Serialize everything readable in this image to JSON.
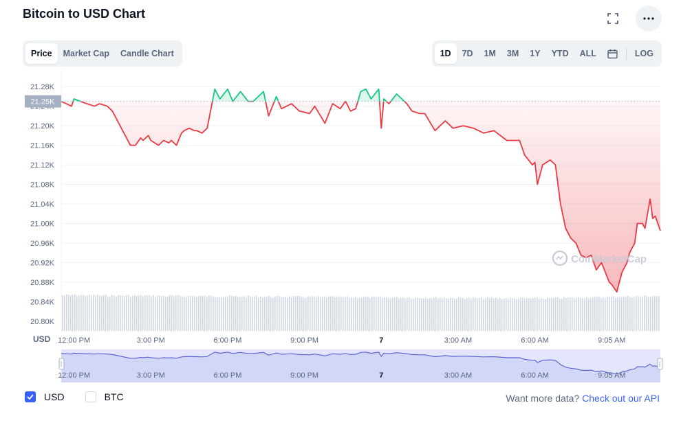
{
  "header": {
    "title": "Bitcoin to USD Chart"
  },
  "icons": {
    "fullscreen": "fullscreen-icon",
    "more": "more-icon",
    "calendar": "calendar-icon",
    "usd_check": "check-icon"
  },
  "tabs": {
    "price": "Price",
    "market_cap": "Market Cap",
    "candle_chart": "Candle Chart",
    "active": "Price"
  },
  "ranges": {
    "d1": "1D",
    "d7": "7D",
    "m1": "1M",
    "m3": "3M",
    "y1": "1Y",
    "ytd": "YTD",
    "all": "ALL",
    "log": "LOG",
    "active": "1D"
  },
  "footer": {
    "usd_label": "USD",
    "btc_label": "BTC",
    "usd_checked": true,
    "btc_checked": false,
    "more_data_text": "Want more data?",
    "api_link": "Check out our API"
  },
  "watermark": "CoinMarketCap",
  "colors": {
    "up": "#16c784",
    "down": "#ea3943",
    "brand": "#3861fb",
    "volume": "#cfd6e4",
    "navigator_fill": "#e3e6fb",
    "navigator_line": "#5b63d3"
  },
  "chart_data": {
    "type": "line",
    "title": "Bitcoin to USD Chart",
    "currency_label": "USD",
    "baseline": 21.25,
    "baseline_label": "21.25K",
    "ylim": [
      20.78,
      21.3
    ],
    "yticks": [
      {
        "v": 21.28,
        "label": "21.28K"
      },
      {
        "v": 21.24,
        "label": "21.24K"
      },
      {
        "v": 21.2,
        "label": "21.20K"
      },
      {
        "v": 21.16,
        "label": "21.16K"
      },
      {
        "v": 21.12,
        "label": "21.12K"
      },
      {
        "v": 21.08,
        "label": "21.08K"
      },
      {
        "v": 21.04,
        "label": "21.04K"
      },
      {
        "v": 21.0,
        "label": "21.00K"
      },
      {
        "v": 20.96,
        "label": "20.96K"
      },
      {
        "v": 20.92,
        "label": "20.92K"
      },
      {
        "v": 20.88,
        "label": "20.88K"
      },
      {
        "v": 20.84,
        "label": "20.84K"
      },
      {
        "v": 20.8,
        "label": "20.80K"
      }
    ],
    "xlim": [
      11.5,
      34.9
    ],
    "xticks": [
      {
        "t": 12,
        "label": "12:00 PM"
      },
      {
        "t": 15,
        "label": "3:00 PM"
      },
      {
        "t": 18,
        "label": "6:00 PM"
      },
      {
        "t": 21,
        "label": "9:00 PM"
      },
      {
        "t": 24,
        "label": "7"
      },
      {
        "t": 27,
        "label": "3:00 AM"
      },
      {
        "t": 30,
        "label": "6:00 AM"
      },
      {
        "t": 33,
        "label": "9:05 AM"
      }
    ],
    "unit": "thousand USD",
    "series": [
      {
        "x": [
          11.5,
          11.9,
          12.0,
          12.5,
          12.8,
          13.0,
          13.3,
          13.5,
          13.8,
          13.9,
          14.2,
          14.4,
          14.6,
          14.7,
          14.9,
          15.0,
          15.3,
          15.5,
          15.7,
          15.8,
          16.0,
          16.2,
          16.3,
          16.5,
          16.7,
          16.8,
          17.0,
          17.2,
          17.5,
          17.7,
          18.0,
          18.2,
          18.5,
          18.8,
          19.0,
          19.4,
          19.6,
          19.9,
          20.1,
          20.5,
          20.8,
          21.2,
          21.4,
          21.8,
          22.1,
          22.4,
          22.6,
          22.8,
          23.0,
          23.2,
          23.4,
          23.6,
          23.9,
          24.0,
          24.1,
          24.3,
          24.6,
          24.8,
          25.0,
          25.2,
          25.5,
          25.7,
          26.1,
          26.5,
          26.8,
          27.2,
          27.6,
          28.0,
          28.4,
          28.9,
          29.4,
          29.6,
          29.9,
          30.0,
          30.1,
          30.3,
          30.6,
          30.8,
          31.0,
          31.2,
          31.4,
          31.6,
          31.8,
          32.0,
          32.2,
          32.4,
          32.6,
          32.9,
          33.0,
          33.2,
          33.4,
          33.5,
          33.6,
          33.7,
          33.9,
          34.0,
          34.2,
          34.3,
          34.5,
          34.6,
          34.7,
          34.9
        ],
        "y": [
          21.25,
          21.24,
          21.255,
          21.245,
          21.24,
          21.245,
          21.24,
          21.23,
          21.2,
          21.19,
          21.16,
          21.16,
          21.175,
          21.17,
          21.18,
          21.17,
          21.16,
          21.17,
          21.165,
          21.17,
          21.16,
          21.185,
          21.19,
          21.195,
          21.19,
          21.19,
          21.185,
          21.195,
          21.275,
          21.255,
          21.275,
          21.25,
          21.27,
          21.25,
          21.25,
          21.27,
          21.22,
          21.26,
          21.235,
          21.245,
          21.23,
          21.225,
          21.24,
          21.205,
          21.245,
          21.235,
          21.25,
          21.23,
          21.235,
          21.27,
          21.275,
          21.255,
          21.275,
          21.195,
          21.255,
          21.245,
          21.265,
          21.255,
          21.245,
          21.23,
          21.225,
          21.225,
          21.19,
          21.21,
          21.195,
          21.2,
          21.195,
          21.185,
          21.19,
          21.17,
          21.17,
          21.14,
          21.12,
          21.125,
          21.08,
          21.12,
          21.13,
          21.12,
          21.04,
          20.99,
          20.97,
          20.96,
          20.935,
          20.93,
          20.935,
          20.905,
          20.92,
          20.88,
          20.875,
          20.86,
          20.9,
          20.91,
          20.92,
          20.94,
          20.96,
          21.0,
          21.0,
          20.99,
          21.05,
          21.01,
          21.015,
          20.985
        ]
      }
    ],
    "volume_note": "volume histogram shown as thin gray bars",
    "navigator_note": "overview line of the full range below main chart"
  }
}
